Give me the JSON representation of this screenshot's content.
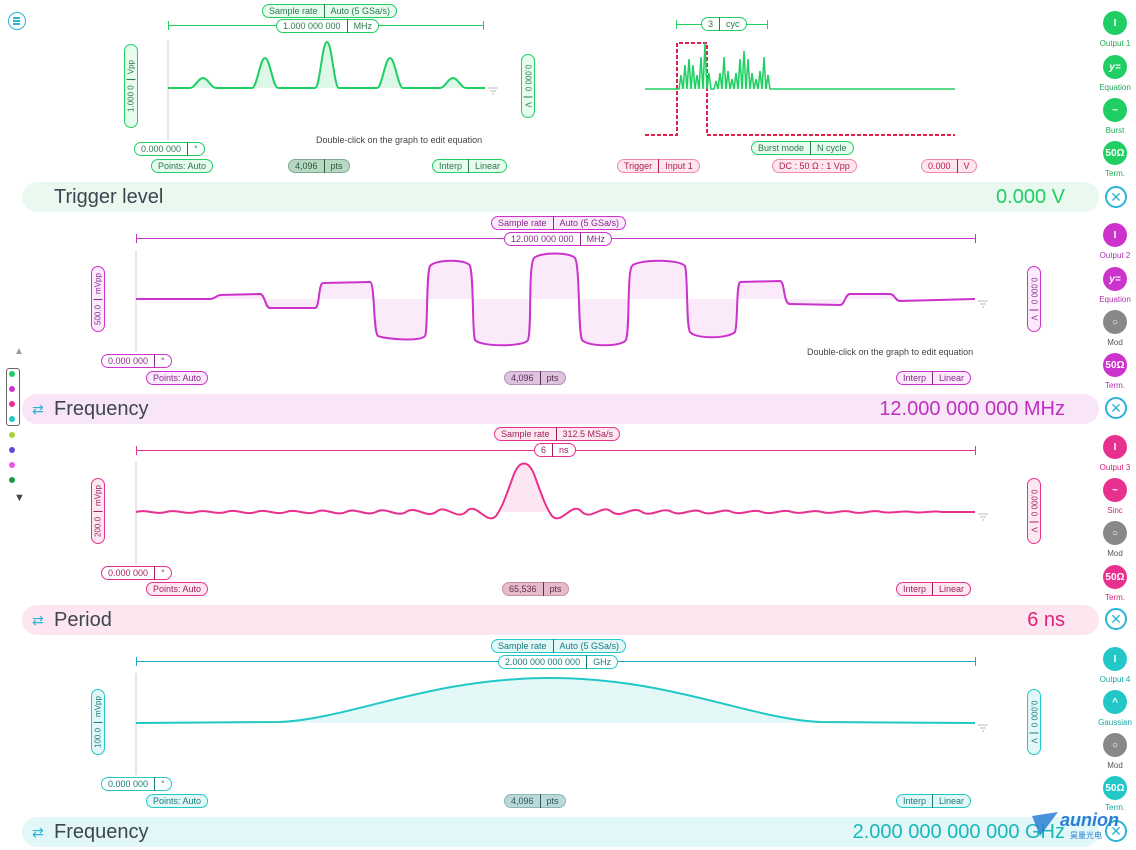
{
  "colors": {
    "ch1": "#1fcf64",
    "ch2": "#cc33cc",
    "ch3": "#e8308e",
    "ch4": "#22c8c8",
    "accent": "#2bb4d6"
  },
  "hint": "Double-click on the graph to edit equation",
  "ch1": {
    "sample_rate_label": "Sample rate",
    "sample_rate_value": "Auto (5 GSa/s)",
    "freq_value": "1.000 000 000",
    "freq_unit": "MHz",
    "amp_value": "1.000 0",
    "amp_unit": "Vpp",
    "offset_value": "0.000 0",
    "offset_sym": "V",
    "phase_value": "0.000 000",
    "phase_unit": "°",
    "points_label": "Points: Auto",
    "pts_value": "4,096",
    "pts_unit": "pts",
    "interp_label": "Interp",
    "interp_value": "Linear",
    "cycles_value": "3",
    "cycles_unit": "cyc",
    "trigger_label": "Trigger",
    "trigger_value": "Input 1",
    "burst_label": "Burst mode",
    "burst_value": "N cycle",
    "dc_label": "DC : 50 Ω : 1 Vpp",
    "level_value": "0.000",
    "level_unit": "V",
    "bar_label": "Trigger level",
    "bar_value": "0.000  V"
  },
  "ch2": {
    "sample_rate_label": "Sample rate",
    "sample_rate_value": "Auto (5 GSa/s)",
    "freq_value": "12.000 000 000",
    "freq_unit": "MHz",
    "amp_value": "500.0",
    "amp_unit": "mVpp",
    "offset_value": "0.000 0",
    "offset_sym": "V",
    "phase_value": "0.000 000",
    "phase_unit": "°",
    "points_label": "Points: Auto",
    "pts_value": "4,096",
    "pts_unit": "pts",
    "interp_label": "Interp",
    "interp_value": "Linear",
    "bar_label": "Frequency",
    "bar_value": "12.000 000 000  MHz"
  },
  "ch3": {
    "sample_rate_label": "Sample rate",
    "sample_rate_value": "312.5 MSa/s",
    "freq_value": "6",
    "freq_unit": "ns",
    "amp_value": "200.0",
    "amp_unit": "mVpp",
    "offset_value": "0.000 0",
    "offset_sym": "V",
    "phase_value": "0.000 000",
    "phase_unit": "°",
    "points_label": "Points: Auto",
    "pts_value": "65,536",
    "pts_unit": "pts",
    "interp_label": "Interp",
    "interp_value": "Linear",
    "bar_label": "Period",
    "bar_value": "6  ns"
  },
  "ch4": {
    "sample_rate_label": "Sample rate",
    "sample_rate_value": "Auto (5 GSa/s)",
    "freq_value": "2.000 000 000 000",
    "freq_unit": "GHz",
    "amp_value": "100.0",
    "amp_unit": "mVpp",
    "offset_value": "0.000 0",
    "offset_sym": "V",
    "phase_value": "0.000 000",
    "phase_unit": "°",
    "points_label": "Points: Auto",
    "pts_value": "4,096",
    "pts_unit": "pts",
    "interp_label": "Interp",
    "interp_value": "Linear",
    "bar_label": "Frequency",
    "bar_value": "2.000 000 000 000  GHz"
  },
  "sidebar": {
    "ch1": [
      {
        "label": "Output 1",
        "glyph": "I"
      },
      {
        "label": "Equation",
        "glyph": "y="
      },
      {
        "label": "Burst",
        "glyph": "~"
      },
      {
        "label": "Term.",
        "glyph": "50Ω"
      }
    ],
    "ch2": [
      {
        "label": "Output 2",
        "glyph": "I"
      },
      {
        "label": "Equation",
        "glyph": "y="
      },
      {
        "label": "Mod",
        "glyph": "○"
      },
      {
        "label": "Term.",
        "glyph": "50Ω"
      }
    ],
    "ch3": [
      {
        "label": "Output 3",
        "glyph": "I"
      },
      {
        "label": "Sinc",
        "glyph": "~"
      },
      {
        "label": "Mod",
        "glyph": "○"
      },
      {
        "label": "Term.",
        "glyph": "50Ω"
      }
    ],
    "ch4": [
      {
        "label": "Output 4",
        "glyph": "I"
      },
      {
        "label": "Gaussian",
        "glyph": "^"
      },
      {
        "label": "Mod",
        "glyph": "○"
      },
      {
        "label": "Term.",
        "glyph": "50Ω"
      }
    ]
  },
  "logo": {
    "text": "aunion",
    "sub": "昊量光电"
  }
}
